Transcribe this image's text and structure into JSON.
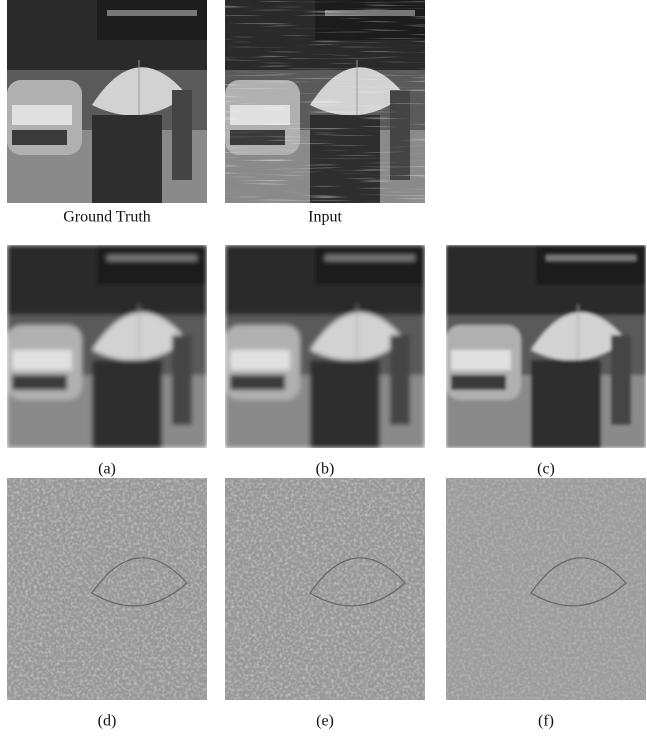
{
  "figure": {
    "panels": [
      {
        "caption": "Ground Truth"
      },
      {
        "caption": "Input"
      },
      {
        "caption": "(a)"
      },
      {
        "caption": "(b)"
      },
      {
        "caption": "(c)"
      },
      {
        "caption": "(d)"
      },
      {
        "caption": "(e)"
      },
      {
        "caption": "(f)"
      }
    ]
  }
}
